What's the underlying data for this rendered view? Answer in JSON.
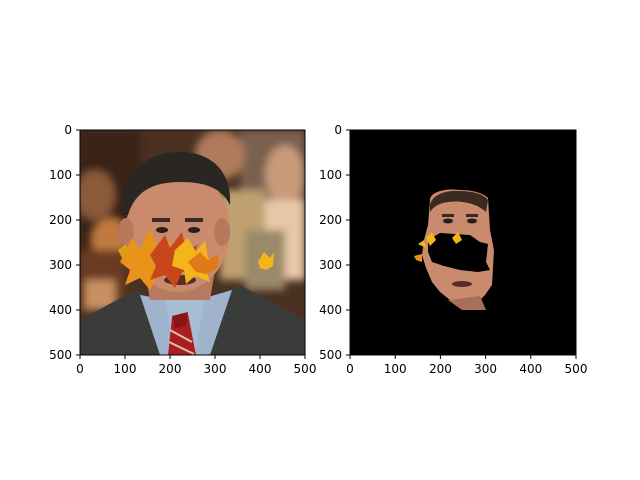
{
  "chart_data": [
    {
      "type": "image",
      "content": "photo of a man in a dark suit, striped shirt and striped red tie in front of a blurred crowd, with autumn maple leaves overlaid across the lower face and cheeks",
      "xlim": [
        0,
        500
      ],
      "ylim": [
        500,
        0
      ],
      "xticks": [
        "0",
        "100",
        "200",
        "300",
        "400",
        "500"
      ],
      "yticks": [
        "0",
        "100",
        "200",
        "300",
        "400",
        "500"
      ],
      "xlabel": "",
      "ylabel": "",
      "title": ""
    },
    {
      "type": "image",
      "content": "segmented face mask on black background showing only the face region, with a black hole where the leaves cover the face",
      "xlim": [
        0,
        500
      ],
      "ylim": [
        500,
        0
      ],
      "xticks": [
        "0",
        "100",
        "200",
        "300",
        "400",
        "500"
      ],
      "yticks": [
        "0",
        "100",
        "200",
        "300",
        "400",
        "500"
      ],
      "xlabel": "",
      "ylabel": "",
      "title": ""
    }
  ],
  "colors": {
    "axes_frame": "#000000",
    "mask_background": "#000000",
    "suit": "#3a3c3a",
    "skin": "#c98a6e",
    "hair": "#2a2622",
    "tie": "#a81e22",
    "shirt": "#9fb4cc",
    "leaf_orange": "#e8941a",
    "leaf_red": "#c8461a",
    "leaf_yellow": "#f2b51c"
  },
  "icons": {
    "leaf": "maple-leaf-icon"
  }
}
